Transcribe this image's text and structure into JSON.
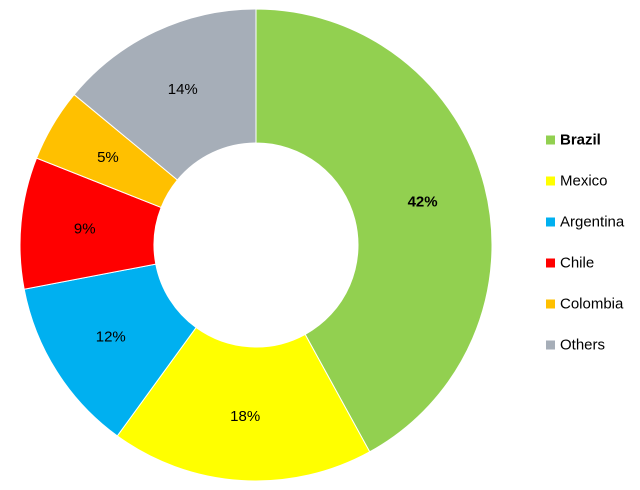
{
  "chart_data": {
    "type": "pie",
    "donut": true,
    "categories": [
      "Brazil",
      "Mexico",
      "Argentina",
      "Chile",
      "Colombia",
      "Others"
    ],
    "values": [
      42,
      18,
      12,
      9,
      5,
      14
    ],
    "value_labels": [
      "42%",
      "18%",
      "12%",
      "9%",
      "5%",
      "14%"
    ],
    "colors": [
      "#92d050",
      "#ffff00",
      "#00b0f0",
      "#ff0000",
      "#ffc000",
      "#a6aeb8"
    ],
    "highlighted": "Brazil",
    "start_angle": "top",
    "direction": "clockwise",
    "legend_placement": "right",
    "title": ""
  }
}
